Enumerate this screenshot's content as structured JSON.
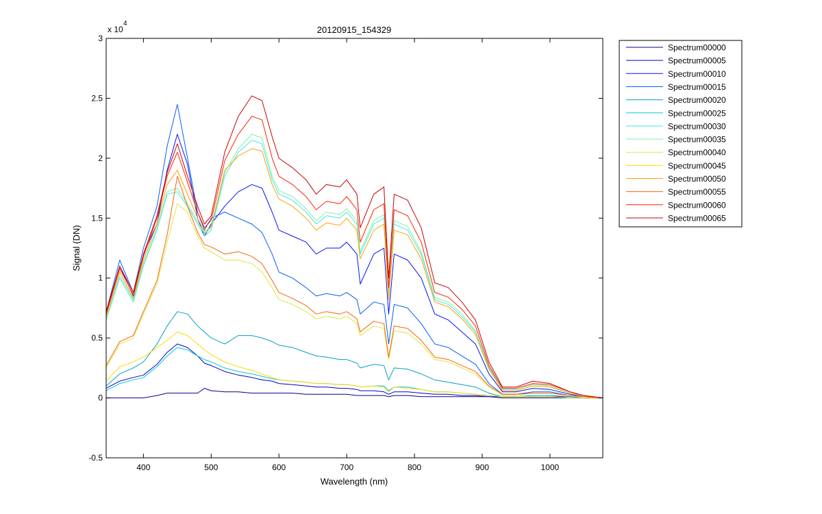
{
  "chart_data": {
    "type": "line",
    "title": "20120915_154329",
    "xlabel": "Wavelength (nm)",
    "ylabel": "Signal (DN)",
    "y_exponent_label": "x 10",
    "y_exponent": "4",
    "xlim": [
      345,
      1078
    ],
    "ylim": [
      -0.5,
      3
    ],
    "y_units": "x 10^4 DN",
    "x_ticks": [
      400,
      500,
      600,
      700,
      800,
      900,
      1000
    ],
    "x_tick_labels": [
      "400",
      "500",
      "600",
      "700",
      "800",
      "900",
      "1000"
    ],
    "y_ticks": [
      -0.5,
      0,
      0.5,
      1,
      1.5,
      2,
      2.5,
      3
    ],
    "y_tick_labels": [
      "-0.5",
      "0",
      "0.5",
      "1",
      "1.5",
      "2",
      "2.5",
      "3"
    ],
    "grid": false,
    "legend_position": "outside-right-top",
    "wavelengths": [
      345,
      365,
      385,
      400,
      420,
      435,
      450,
      465,
      480,
      490,
      500,
      520,
      540,
      560,
      575,
      590,
      600,
      620,
      640,
      655,
      670,
      690,
      700,
      715,
      720,
      740,
      755,
      762,
      770,
      790,
      810,
      830,
      850,
      870,
      890,
      910,
      930,
      950,
      975,
      1000,
      1030,
      1050,
      1078
    ],
    "series": [
      {
        "name": "Spectrum00000",
        "color": "#00008f",
        "values": [
          0,
          0,
          0,
          0,
          0.02,
          0.04,
          0.04,
          0.04,
          0.04,
          0.08,
          0.06,
          0.05,
          0.05,
          0.04,
          0.04,
          0.04,
          0.04,
          0.04,
          0.03,
          0.03,
          0.03,
          0.03,
          0.03,
          0.02,
          0.02,
          0.02,
          0.02,
          0.01,
          0.02,
          0.02,
          0.01,
          0.01,
          0.01,
          0.01,
          0.01,
          0.01,
          0,
          0,
          0,
          0,
          0,
          0,
          0
        ]
      },
      {
        "name": "Spectrum00005",
        "color": "#0000c8",
        "values": [
          0.08,
          0.14,
          0.17,
          0.19,
          0.28,
          0.38,
          0.45,
          0.42,
          0.35,
          0.29,
          0.27,
          0.22,
          0.19,
          0.17,
          0.15,
          0.14,
          0.12,
          0.11,
          0.1,
          0.09,
          0.09,
          0.08,
          0.08,
          0.07,
          0.06,
          0.06,
          0.05,
          0.03,
          0.05,
          0.05,
          0.04,
          0.03,
          0.03,
          0.02,
          0.02,
          0.01,
          0.01,
          0.01,
          0.01,
          0.01,
          0.01,
          0,
          0
        ]
      },
      {
        "name": "Spectrum00010",
        "color": "#0010ff",
        "values": [
          0.7,
          1.1,
          0.85,
          1.2,
          1.45,
          1.9,
          2.2,
          1.95,
          1.5,
          1.35,
          1.45,
          1.6,
          1.72,
          1.78,
          1.75,
          1.55,
          1.4,
          1.35,
          1.3,
          1.2,
          1.25,
          1.25,
          1.3,
          1.2,
          0.95,
          1.2,
          1.25,
          0.7,
          1.2,
          1.15,
          1.0,
          0.7,
          0.65,
          0.55,
          0.45,
          0.2,
          0.05,
          0.05,
          0.08,
          0.07,
          0.03,
          0.01,
          0
        ]
      },
      {
        "name": "Spectrum00015",
        "color": "#005cff",
        "values": [
          0.72,
          1.15,
          0.88,
          1.25,
          1.6,
          2.1,
          2.45,
          2.0,
          1.55,
          1.4,
          1.5,
          1.55,
          1.5,
          1.45,
          1.38,
          1.2,
          1.05,
          1.0,
          0.92,
          0.85,
          0.87,
          0.85,
          0.88,
          0.82,
          0.7,
          0.8,
          0.78,
          0.45,
          0.78,
          0.75,
          0.62,
          0.45,
          0.42,
          0.35,
          0.28,
          0.12,
          0.03,
          0.03,
          0.05,
          0.05,
          0.02,
          0.01,
          0
        ]
      },
      {
        "name": "Spectrum00020",
        "color": "#00a0c0",
        "values": [
          0.1,
          0.2,
          0.25,
          0.3,
          0.45,
          0.6,
          0.72,
          0.7,
          0.6,
          0.55,
          0.5,
          0.45,
          0.52,
          0.52,
          0.5,
          0.47,
          0.44,
          0.42,
          0.38,
          0.35,
          0.34,
          0.32,
          0.32,
          0.29,
          0.25,
          0.28,
          0.27,
          0.15,
          0.25,
          0.24,
          0.2,
          0.15,
          0.13,
          0.11,
          0.09,
          0.04,
          0.01,
          0.01,
          0.02,
          0.02,
          0.01,
          0,
          0
        ]
      },
      {
        "name": "Spectrum00025",
        "color": "#00c8d8",
        "values": [
          0.06,
          0.12,
          0.15,
          0.17,
          0.26,
          0.35,
          0.42,
          0.4,
          0.35,
          0.32,
          0.3,
          0.25,
          0.22,
          0.2,
          0.18,
          0.16,
          0.15,
          0.14,
          0.13,
          0.12,
          0.12,
          0.11,
          0.11,
          0.1,
          0.09,
          0.1,
          0.1,
          0.06,
          0.09,
          0.09,
          0.07,
          0.05,
          0.05,
          0.04,
          0.03,
          0.02,
          0.01,
          0.01,
          0.01,
          0.01,
          0,
          0,
          0
        ]
      },
      {
        "name": "Spectrum00030",
        "color": "#40e8e8",
        "values": [
          0.65,
          1.0,
          0.8,
          1.1,
          1.4,
          1.7,
          1.72,
          1.6,
          1.45,
          1.35,
          1.4,
          1.85,
          2.05,
          2.15,
          2.12,
          1.82,
          1.7,
          1.65,
          1.55,
          1.45,
          1.52,
          1.5,
          1.55,
          1.45,
          1.2,
          1.45,
          1.5,
          0.85,
          1.45,
          1.4,
          1.2,
          0.82,
          0.78,
          0.68,
          0.55,
          0.25,
          0.07,
          0.07,
          0.11,
          0.1,
          0.04,
          0.02,
          0
        ]
      },
      {
        "name": "Spectrum00035",
        "color": "#80f0a0",
        "values": [
          0.66,
          1.02,
          0.82,
          1.12,
          1.42,
          1.72,
          1.75,
          1.62,
          1.47,
          1.37,
          1.42,
          1.88,
          2.08,
          2.2,
          2.17,
          1.85,
          1.73,
          1.68,
          1.58,
          1.48,
          1.55,
          1.53,
          1.58,
          1.48,
          1.22,
          1.48,
          1.53,
          0.87,
          1.48,
          1.43,
          1.22,
          0.84,
          0.8,
          0.7,
          0.56,
          0.26,
          0.07,
          0.07,
          0.11,
          0.1,
          0.04,
          0.02,
          0
        ]
      },
      {
        "name": "Spectrum00040",
        "color": "#d8e840",
        "values": [
          0.25,
          0.45,
          0.5,
          0.7,
          0.95,
          1.3,
          1.62,
          1.55,
          1.35,
          1.25,
          1.22,
          1.15,
          1.15,
          1.12,
          1.05,
          0.92,
          0.82,
          0.78,
          0.72,
          0.66,
          0.68,
          0.66,
          0.68,
          0.62,
          0.52,
          0.6,
          0.58,
          0.32,
          0.56,
          0.54,
          0.45,
          0.32,
          0.3,
          0.25,
          0.2,
          0.09,
          0.02,
          0.02,
          0.04,
          0.04,
          0.02,
          0.01,
          0
        ]
      },
      {
        "name": "Spectrum00045",
        "color": "#ffd800",
        "values": [
          0.14,
          0.26,
          0.3,
          0.34,
          0.42,
          0.48,
          0.55,
          0.52,
          0.45,
          0.4,
          0.36,
          0.3,
          0.26,
          0.23,
          0.2,
          0.17,
          0.15,
          0.14,
          0.13,
          0.12,
          0.12,
          0.11,
          0.11,
          0.1,
          0.09,
          0.1,
          0.09,
          0.05,
          0.09,
          0.08,
          0.07,
          0.05,
          0.05,
          0.04,
          0.03,
          0.02,
          0.01,
          0.01,
          0.01,
          0.01,
          0,
          0,
          0
        ]
      },
      {
        "name": "Spectrum00050",
        "color": "#ffa000",
        "values": [
          0.68,
          1.05,
          0.83,
          1.15,
          1.45,
          1.78,
          1.9,
          1.7,
          1.5,
          1.38,
          1.43,
          1.9,
          2.02,
          2.08,
          2.06,
          1.78,
          1.66,
          1.6,
          1.5,
          1.4,
          1.46,
          1.44,
          1.5,
          1.4,
          1.16,
          1.4,
          1.45,
          0.82,
          1.4,
          1.36,
          1.16,
          0.8,
          0.76,
          0.66,
          0.53,
          0.24,
          0.06,
          0.06,
          0.1,
          0.09,
          0.04,
          0.02,
          0
        ]
      },
      {
        "name": "Spectrum00055",
        "color": "#ff6000",
        "values": [
          0.27,
          0.47,
          0.52,
          0.72,
          0.98,
          1.36,
          1.85,
          1.6,
          1.38,
          1.28,
          1.26,
          1.2,
          1.22,
          1.18,
          1.12,
          0.98,
          0.88,
          0.83,
          0.77,
          0.7,
          0.72,
          0.7,
          0.72,
          0.66,
          0.55,
          0.64,
          0.62,
          0.34,
          0.6,
          0.58,
          0.48,
          0.34,
          0.32,
          0.27,
          0.22,
          0.1,
          0.03,
          0.03,
          0.04,
          0.04,
          0.02,
          0.01,
          0
        ]
      },
      {
        "name": "Spectrum00060",
        "color": "#ff2000",
        "values": [
          0.7,
          1.08,
          0.86,
          1.18,
          1.5,
          1.85,
          2.05,
          1.8,
          1.55,
          1.42,
          1.48,
          1.98,
          2.2,
          2.35,
          2.32,
          2.0,
          1.85,
          1.78,
          1.68,
          1.57,
          1.64,
          1.62,
          1.68,
          1.57,
          1.3,
          1.57,
          1.62,
          0.92,
          1.57,
          1.52,
          1.3,
          0.88,
          0.84,
          0.74,
          0.6,
          0.27,
          0.08,
          0.08,
          0.12,
          0.11,
          0.05,
          0.02,
          0
        ]
      },
      {
        "name": "Spectrum00065",
        "color": "#c80000",
        "values": [
          0.72,
          1.1,
          0.88,
          1.2,
          1.52,
          1.88,
          2.12,
          1.85,
          1.6,
          1.45,
          1.52,
          2.05,
          2.35,
          2.52,
          2.48,
          2.18,
          2.0,
          1.92,
          1.82,
          1.7,
          1.78,
          1.76,
          1.82,
          1.7,
          1.42,
          1.7,
          1.76,
          1.0,
          1.7,
          1.65,
          1.42,
          0.96,
          0.92,
          0.8,
          0.65,
          0.3,
          0.09,
          0.09,
          0.14,
          0.12,
          0.05,
          0.02,
          0
        ]
      }
    ]
  }
}
